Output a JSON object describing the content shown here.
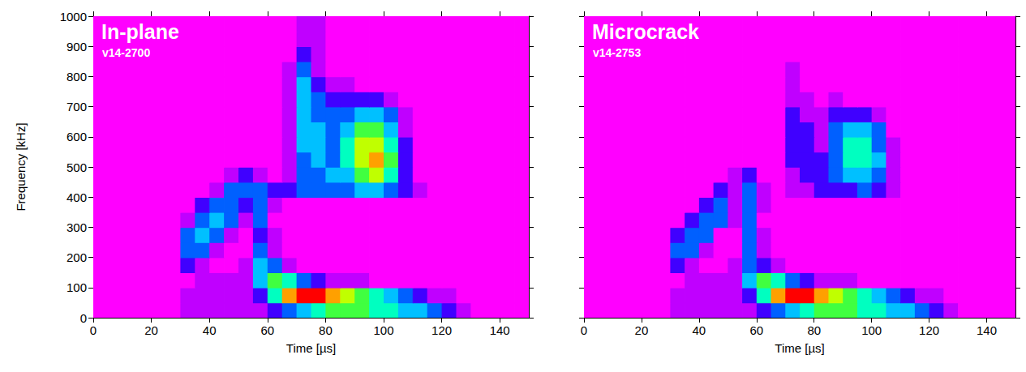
{
  "chart_data": [
    {
      "type": "heatmap",
      "title": "In-plane",
      "subtitle": "v14-2700",
      "x_label": "Time [µs]",
      "y_label": "Frequency [kHz]",
      "xlim": [
        0,
        150
      ],
      "xticks": [
        0,
        20,
        40,
        60,
        80,
        100,
        120,
        140
      ],
      "ylim": [
        0,
        1000
      ],
      "yticks": [
        0,
        100,
        200,
        300,
        400,
        500,
        600,
        700,
        800,
        900,
        1000
      ],
      "zlim": [
        0,
        9
      ],
      "time_bins": [
        0,
        5,
        10,
        15,
        20,
        25,
        30,
        35,
        40,
        45,
        50,
        55,
        60,
        65,
        70,
        75,
        80,
        85,
        90,
        95,
        100,
        105,
        110,
        115,
        120,
        125,
        130,
        135,
        140,
        145,
        150
      ],
      "frequency_bins": [
        0,
        50,
        100,
        150,
        200,
        250,
        300,
        350,
        400,
        450,
        500,
        550,
        600,
        650,
        700,
        750,
        800,
        850,
        900,
        950,
        1000
      ],
      "cells": [
        [
          0,
          0,
          0,
          0,
          0,
          0,
          1,
          1,
          1,
          1,
          1,
          1,
          2,
          3,
          4,
          5,
          6,
          6,
          6,
          5,
          5,
          4,
          4,
          3,
          2,
          1,
          0,
          0,
          0,
          0
        ],
        [
          0,
          0,
          0,
          0,
          0,
          0,
          1,
          1,
          1,
          1,
          1,
          2,
          5,
          8,
          9,
          9,
          8,
          7,
          6,
          5,
          4,
          3,
          2,
          1,
          1,
          0,
          0,
          0,
          0,
          0
        ],
        [
          0,
          0,
          0,
          0,
          0,
          0,
          0,
          1,
          1,
          1,
          1,
          4,
          6,
          5,
          3,
          2,
          1,
          1,
          1,
          0,
          0,
          0,
          0,
          0,
          0,
          0,
          0,
          0,
          0,
          0
        ],
        [
          0,
          0,
          0,
          0,
          0,
          0,
          2,
          1,
          0,
          0,
          1,
          4,
          3,
          1,
          0,
          0,
          0,
          0,
          0,
          0,
          0,
          0,
          0,
          0,
          0,
          0,
          0,
          0,
          0,
          0
        ],
        [
          0,
          0,
          0,
          0,
          0,
          0,
          3,
          3,
          1,
          0,
          0,
          3,
          1,
          0,
          0,
          0,
          0,
          0,
          0,
          0,
          0,
          0,
          0,
          0,
          0,
          0,
          0,
          0,
          0,
          0
        ],
        [
          0,
          0,
          0,
          0,
          0,
          0,
          3,
          4,
          3,
          1,
          0,
          2,
          1,
          0,
          0,
          0,
          0,
          0,
          0,
          0,
          0,
          0,
          0,
          0,
          0,
          0,
          0,
          0,
          0,
          0
        ],
        [
          0,
          0,
          0,
          0,
          0,
          0,
          1,
          3,
          4,
          3,
          1,
          3,
          0,
          0,
          0,
          0,
          0,
          0,
          0,
          0,
          0,
          0,
          0,
          0,
          0,
          0,
          0,
          0,
          0,
          0
        ],
        [
          0,
          0,
          0,
          0,
          0,
          0,
          0,
          2,
          3,
          3,
          2,
          3,
          1,
          0,
          0,
          0,
          0,
          0,
          0,
          0,
          0,
          0,
          0,
          0,
          0,
          0,
          0,
          0,
          0,
          0
        ],
        [
          0,
          0,
          0,
          0,
          0,
          0,
          0,
          0,
          1,
          3,
          3,
          3,
          2,
          2,
          3,
          3,
          3,
          3,
          4,
          4,
          3,
          2,
          1,
          0,
          0,
          0,
          0,
          0,
          0,
          0
        ],
        [
          0,
          0,
          0,
          0,
          0,
          0,
          0,
          0,
          0,
          1,
          2,
          1,
          0,
          1,
          3,
          3,
          4,
          4,
          6,
          7,
          5,
          2,
          0,
          0,
          0,
          0,
          0,
          0,
          0,
          0
        ],
        [
          0,
          0,
          0,
          0,
          0,
          0,
          0,
          0,
          0,
          0,
          0,
          0,
          0,
          1,
          3,
          4,
          3,
          5,
          7,
          8,
          6,
          2,
          0,
          0,
          0,
          0,
          0,
          0,
          0,
          0
        ],
        [
          0,
          0,
          0,
          0,
          0,
          0,
          0,
          0,
          0,
          0,
          0,
          0,
          0,
          1,
          4,
          4,
          3,
          5,
          7,
          7,
          5,
          2,
          0,
          0,
          0,
          0,
          0,
          0,
          0,
          0
        ],
        [
          0,
          0,
          0,
          0,
          0,
          0,
          0,
          0,
          0,
          0,
          0,
          0,
          0,
          1,
          4,
          4,
          3,
          4,
          6,
          6,
          4,
          1,
          0,
          0,
          0,
          0,
          0,
          0,
          0,
          0
        ],
        [
          0,
          0,
          0,
          0,
          0,
          0,
          0,
          0,
          0,
          0,
          0,
          0,
          0,
          1,
          4,
          3,
          3,
          3,
          4,
          4,
          3,
          1,
          0,
          0,
          0,
          0,
          0,
          0,
          0,
          0
        ],
        [
          0,
          0,
          0,
          0,
          0,
          0,
          0,
          0,
          0,
          0,
          0,
          0,
          0,
          1,
          4,
          3,
          2,
          2,
          2,
          2,
          1,
          0,
          0,
          0,
          0,
          0,
          0,
          0,
          0,
          0
        ],
        [
          0,
          0,
          0,
          0,
          0,
          0,
          0,
          0,
          0,
          0,
          0,
          0,
          0,
          1,
          4,
          2,
          1,
          1,
          0,
          0,
          0,
          0,
          0,
          0,
          0,
          0,
          0,
          0,
          0,
          0
        ],
        [
          0,
          0,
          0,
          0,
          0,
          0,
          0,
          0,
          0,
          0,
          0,
          0,
          0,
          1,
          3,
          1,
          0,
          0,
          0,
          0,
          0,
          0,
          0,
          0,
          0,
          0,
          0,
          0,
          0,
          0
        ],
        [
          0,
          0,
          0,
          0,
          0,
          0,
          0,
          0,
          0,
          0,
          0,
          0,
          0,
          0,
          2,
          1,
          0,
          0,
          0,
          0,
          0,
          0,
          0,
          0,
          0,
          0,
          0,
          0,
          0,
          0
        ],
        [
          0,
          0,
          0,
          0,
          0,
          0,
          0,
          0,
          0,
          0,
          0,
          0,
          0,
          0,
          1,
          1,
          0,
          0,
          0,
          0,
          0,
          0,
          0,
          0,
          0,
          0,
          0,
          0,
          0,
          0
        ],
        [
          0,
          0,
          0,
          0,
          0,
          0,
          0,
          0,
          0,
          0,
          0,
          0,
          0,
          0,
          1,
          1,
          0,
          0,
          0,
          0,
          0,
          0,
          0,
          0,
          0,
          0,
          0,
          0,
          0,
          0
        ]
      ]
    },
    {
      "type": "heatmap",
      "title": "Microcrack",
      "subtitle": "v14-2753",
      "x_label": "Time [µs]",
      "tick_labels": "x",
      "xlim": [
        0,
        150
      ],
      "xticks": [
        0,
        20,
        40,
        60,
        80,
        100,
        120,
        140
      ],
      "ylim": [
        0,
        1000
      ],
      "yticks": [
        0,
        100,
        200,
        300,
        400,
        500,
        600,
        700,
        800,
        900,
        1000
      ],
      "zlim": [
        0,
        9
      ],
      "time_bins": [
        0,
        5,
        10,
        15,
        20,
        25,
        30,
        35,
        40,
        45,
        50,
        55,
        60,
        65,
        70,
        75,
        80,
        85,
        90,
        95,
        100,
        105,
        110,
        115,
        120,
        125,
        130,
        135,
        140,
        145,
        150
      ],
      "frequency_bins": [
        0,
        50,
        100,
        150,
        200,
        250,
        300,
        350,
        400,
        450,
        500,
        550,
        600,
        650,
        700,
        750,
        800,
        850,
        900,
        950,
        1000
      ],
      "cells": [
        [
          0,
          0,
          0,
          0,
          0,
          0,
          1,
          1,
          1,
          1,
          1,
          1,
          2,
          3,
          4,
          5,
          6,
          6,
          6,
          5,
          5,
          4,
          4,
          3,
          2,
          1,
          0,
          0,
          0,
          0
        ],
        [
          0,
          0,
          0,
          0,
          0,
          0,
          1,
          1,
          1,
          1,
          1,
          2,
          5,
          8,
          9,
          9,
          8,
          7,
          6,
          5,
          4,
          3,
          2,
          1,
          1,
          0,
          0,
          0,
          0,
          0
        ],
        [
          0,
          0,
          0,
          0,
          0,
          0,
          0,
          1,
          1,
          1,
          1,
          4,
          6,
          5,
          3,
          2,
          1,
          1,
          1,
          0,
          0,
          0,
          0,
          0,
          0,
          0,
          0,
          0,
          0,
          0
        ],
        [
          0,
          0,
          0,
          0,
          0,
          0,
          2,
          1,
          0,
          0,
          1,
          3,
          2,
          1,
          0,
          0,
          0,
          0,
          0,
          0,
          0,
          0,
          0,
          0,
          0,
          0,
          0,
          0,
          0,
          0
        ],
        [
          0,
          0,
          0,
          0,
          0,
          0,
          3,
          3,
          1,
          0,
          0,
          3,
          1,
          0,
          0,
          0,
          0,
          0,
          0,
          0,
          0,
          0,
          0,
          0,
          0,
          0,
          0,
          0,
          0,
          0
        ],
        [
          0,
          0,
          0,
          0,
          0,
          0,
          2,
          3,
          3,
          0,
          0,
          3,
          1,
          0,
          0,
          0,
          0,
          0,
          0,
          0,
          0,
          0,
          0,
          0,
          0,
          0,
          0,
          0,
          0,
          0
        ],
        [
          0,
          0,
          0,
          0,
          0,
          0,
          0,
          2,
          3,
          3,
          1,
          3,
          0,
          0,
          0,
          0,
          0,
          0,
          0,
          0,
          0,
          0,
          0,
          0,
          0,
          0,
          0,
          0,
          0,
          0
        ],
        [
          0,
          0,
          0,
          0,
          0,
          0,
          0,
          0,
          2,
          3,
          1,
          3,
          1,
          0,
          0,
          0,
          0,
          0,
          0,
          0,
          0,
          0,
          0,
          0,
          0,
          0,
          0,
          0,
          0,
          0
        ],
        [
          0,
          0,
          0,
          0,
          0,
          0,
          0,
          0,
          0,
          2,
          1,
          3,
          1,
          0,
          1,
          1,
          2,
          2,
          2,
          3,
          2,
          1,
          0,
          0,
          0,
          0,
          0,
          0,
          0,
          0
        ],
        [
          0,
          0,
          0,
          0,
          0,
          0,
          0,
          0,
          0,
          0,
          1,
          2,
          0,
          0,
          1,
          2,
          2,
          3,
          4,
          4,
          3,
          1,
          0,
          0,
          0,
          0,
          0,
          0,
          0,
          0
        ],
        [
          0,
          0,
          0,
          0,
          0,
          0,
          0,
          0,
          0,
          0,
          0,
          0,
          0,
          0,
          2,
          2,
          2,
          3,
          5,
          5,
          4,
          1,
          0,
          0,
          0,
          0,
          0,
          0,
          0,
          0
        ],
        [
          0,
          0,
          0,
          0,
          0,
          0,
          0,
          0,
          0,
          0,
          0,
          0,
          0,
          0,
          2,
          2,
          1,
          3,
          5,
          5,
          3,
          1,
          0,
          0,
          0,
          0,
          0,
          0,
          0,
          0
        ],
        [
          0,
          0,
          0,
          0,
          0,
          0,
          0,
          0,
          0,
          0,
          0,
          0,
          0,
          0,
          2,
          2,
          1,
          3,
          4,
          4,
          3,
          0,
          0,
          0,
          0,
          0,
          0,
          0,
          0,
          0
        ],
        [
          0,
          0,
          0,
          0,
          0,
          0,
          0,
          0,
          0,
          0,
          0,
          0,
          0,
          0,
          2,
          1,
          1,
          2,
          2,
          2,
          1,
          0,
          0,
          0,
          0,
          0,
          0,
          0,
          0,
          0
        ],
        [
          0,
          0,
          0,
          0,
          0,
          0,
          0,
          0,
          0,
          0,
          0,
          0,
          0,
          0,
          1,
          1,
          0,
          1,
          0,
          0,
          0,
          0,
          0,
          0,
          0,
          0,
          0,
          0,
          0,
          0
        ],
        [
          0,
          0,
          0,
          0,
          0,
          0,
          0,
          0,
          0,
          0,
          0,
          0,
          0,
          0,
          1,
          0,
          0,
          0,
          0,
          0,
          0,
          0,
          0,
          0,
          0,
          0,
          0,
          0,
          0,
          0
        ],
        [
          0,
          0,
          0,
          0,
          0,
          0,
          0,
          0,
          0,
          0,
          0,
          0,
          0,
          0,
          1,
          0,
          0,
          0,
          0,
          0,
          0,
          0,
          0,
          0,
          0,
          0,
          0,
          0,
          0,
          0
        ],
        [
          0,
          0,
          0,
          0,
          0,
          0,
          0,
          0,
          0,
          0,
          0,
          0,
          0,
          0,
          0,
          0,
          0,
          0,
          0,
          0,
          0,
          0,
          0,
          0,
          0,
          0,
          0,
          0,
          0,
          0
        ],
        [
          0,
          0,
          0,
          0,
          0,
          0,
          0,
          0,
          0,
          0,
          0,
          0,
          0,
          0,
          0,
          0,
          0,
          0,
          0,
          0,
          0,
          0,
          0,
          0,
          0,
          0,
          0,
          0,
          0,
          0
        ],
        [
          0,
          0,
          0,
          0,
          0,
          0,
          0,
          0,
          0,
          0,
          0,
          0,
          0,
          0,
          0,
          0,
          0,
          0,
          0,
          0,
          0,
          0,
          0,
          0,
          0,
          0,
          0,
          0,
          0,
          0
        ]
      ]
    }
  ]
}
